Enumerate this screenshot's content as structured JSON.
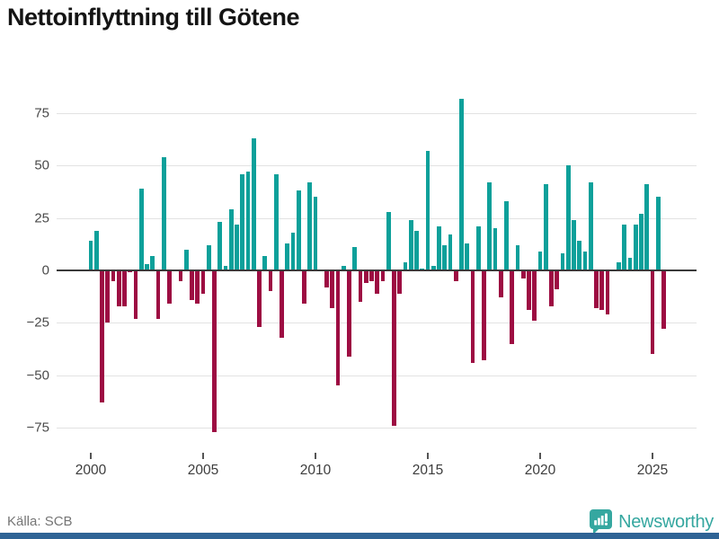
{
  "header": {
    "title": "Nettoinflyttning till Götene"
  },
  "footer": {
    "source_label": "Källa: SCB",
    "brand_name": "Newsworthy"
  },
  "icons": {
    "brand_badge": "newsworthy-bar-chart-badge-icon"
  },
  "colors": {
    "positive_bar": "#0da09a",
    "negative_bar": "#9d0c42",
    "brand_teal": "#35a7a0",
    "bottom_strip_blue": "#2e6395",
    "axis_line": "#3a3a3a",
    "gridline": "#e2e2e2"
  },
  "chart_data": {
    "type": "bar",
    "title": "Nettoinflyttning till Götene",
    "period": "quarterly",
    "x_start": "2000 Q1",
    "x_end": "2025 Q3",
    "grid": true,
    "legend": false,
    "ylim": [
      -86,
      88
    ],
    "yticks": [
      75,
      50,
      25,
      0,
      -25,
      -50,
      -75
    ],
    "ytick_labels": [
      "75",
      "50",
      "25",
      "0",
      "−25",
      "−50",
      "−75"
    ],
    "xticks": [
      2000,
      2005,
      2010,
      2015,
      2020,
      2025
    ],
    "xtick_labels": [
      "2000",
      "2005",
      "2010",
      "2015",
      "2020",
      "2025"
    ],
    "values_by_year": {
      "2000": [
        14,
        19,
        -63,
        -25
      ],
      "2001": [
        -5,
        -17,
        -17,
        -1
      ],
      "2002": [
        -23,
        39,
        3,
        7
      ],
      "2003": [
        -23,
        54,
        -16,
        0
      ],
      "2004": [
        -5,
        10,
        -14,
        -16
      ],
      "2005": [
        -11,
        12,
        -77,
        23
      ],
      "2006": [
        2,
        29,
        22,
        46
      ],
      "2007": [
        47,
        63,
        -27,
        7
      ],
      "2008": [
        -10,
        46,
        -32,
        13
      ],
      "2009": [
        18,
        38,
        -16,
        42
      ],
      "2010": [
        35,
        0,
        -8,
        -18
      ],
      "2011": [
        -55,
        2,
        -41,
        11
      ],
      "2012": [
        -15,
        -6,
        -5,
        -11
      ],
      "2013": [
        -5,
        28,
        -74,
        -11
      ],
      "2014": [
        4,
        24,
        19,
        1
      ],
      "2015": [
        57,
        2,
        21,
        12
      ],
      "2016": [
        17,
        -5,
        82,
        13
      ],
      "2017": [
        -44,
        21,
        -43,
        42
      ],
      "2018": [
        20,
        -13,
        33,
        -35
      ],
      "2019": [
        12,
        -4,
        -19,
        -24
      ],
      "2020": [
        9,
        41,
        -17,
        -9
      ],
      "2021": [
        8,
        50,
        24,
        14
      ],
      "2022": [
        9,
        42,
        -18,
        -19
      ],
      "2023": [
        -21,
        0,
        4,
        22
      ],
      "2024": [
        6,
        22,
        27,
        41
      ],
      "2025": [
        -40,
        35,
        -28
      ]
    }
  }
}
